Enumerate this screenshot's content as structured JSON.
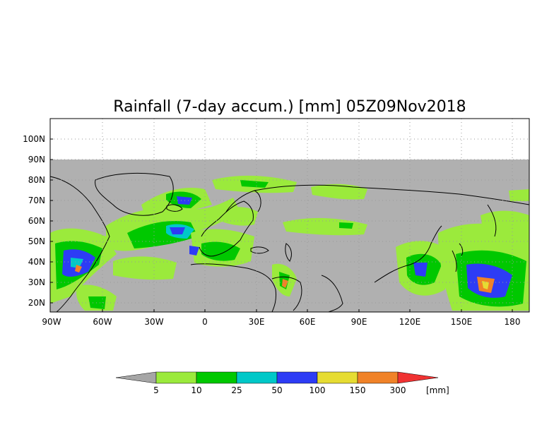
{
  "map": {
    "title": "Rainfall (7-day accum.) [mm] 05Z09Nov2018",
    "lat_ticks": [
      "100N",
      "90N",
      "80N",
      "70N",
      "60N",
      "50N",
      "40N",
      "30N",
      "20N"
    ],
    "lon_ticks": [
      "90W",
      "60W",
      "30W",
      "0",
      "30E",
      "60E",
      "90E",
      "120E",
      "150E",
      "180"
    ],
    "lat_range": [
      15,
      110
    ],
    "lon_range": [
      -90,
      190
    ],
    "data_top_lat": 90,
    "no_data_color": "#b0b0b0",
    "grid": "dotted"
  },
  "colorbar": {
    "unit": "[mm]",
    "labels": [
      "5",
      "10",
      "25",
      "50",
      "100",
      "150",
      "300"
    ],
    "colors": [
      "#a6a6a6",
      "#9bea3c",
      "#00c800",
      "#00c8c8",
      "#2d3cf5",
      "#e6dc32",
      "#f08228",
      "#f03232"
    ]
  }
}
